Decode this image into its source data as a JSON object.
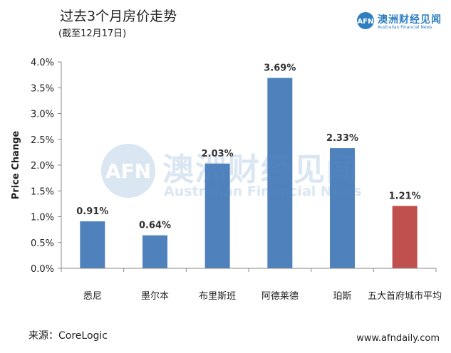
{
  "header": {
    "title": "过去3个月房价走势",
    "subtitle": "(截至12月17日)"
  },
  "logo": {
    "cn": "澳洲财经见闻",
    "en": "Australian Financial News"
  },
  "watermark": {
    "cn": "澳洲财经见闻",
    "en": "Australian Financial News"
  },
  "footer": {
    "source": "来源：CoreLogic",
    "site": "www.afndaily.com"
  },
  "chart_data": {
    "type": "bar",
    "categories": [
      "悉尼",
      "墨尔本",
      "布里斯班",
      "阿德莱德",
      "珀斯",
      "五大首府城市平均"
    ],
    "values": [
      0.91,
      0.64,
      2.03,
      3.69,
      2.33,
      1.21
    ],
    "data_labels": [
      "0.91%",
      "0.64%",
      "2.03%",
      "3.69%",
      "2.33%",
      "1.21%"
    ],
    "bar_colors": [
      "#4f81bd",
      "#4f81bd",
      "#4f81bd",
      "#4f81bd",
      "#4f81bd",
      "#c0504d"
    ],
    "ylabel": "Price Change",
    "ylim": [
      0,
      4.0
    ],
    "yticks": [
      0,
      0.5,
      1.0,
      1.5,
      2.0,
      2.5,
      3.0,
      3.5,
      4.0
    ],
    "ytick_labels": [
      "0.0%",
      "0.5%",
      "1.0%",
      "1.5%",
      "2.0%",
      "2.5%",
      "3.0%",
      "3.5%",
      "4.0%"
    ],
    "grid": false,
    "legend": "none"
  }
}
